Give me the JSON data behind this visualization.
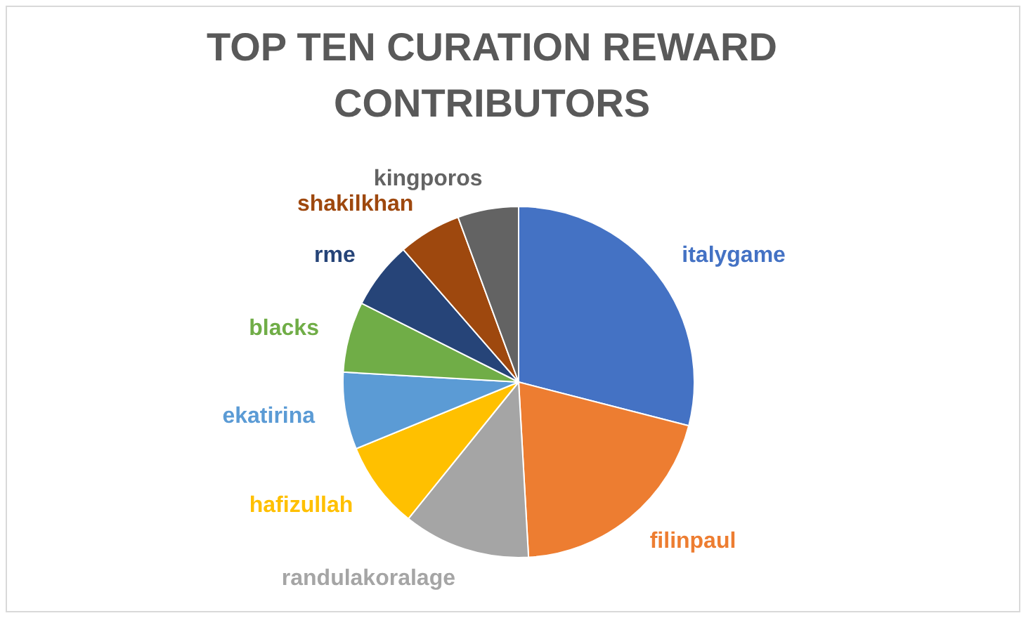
{
  "chart_data": {
    "type": "pie",
    "title": "TOP TEN CURATION REWARD CONTRIBUTORS",
    "categories": [
      "italygame",
      "filinpaul",
      "randulakoralage",
      "hafizullah",
      "ekatirina",
      "blacks",
      "rme",
      "shakilkhan",
      "kingporos"
    ],
    "values": [
      29.0,
      20.1,
      11.7,
      8.0,
      7.1,
      6.5,
      6.2,
      5.8,
      5.6
    ],
    "colors": [
      "#4472c4",
      "#ed7d31",
      "#a5a5a5",
      "#ffc000",
      "#5b9bd5",
      "#70ad47",
      "#264478",
      "#9e480e",
      "#636363"
    ],
    "legend": false
  }
}
